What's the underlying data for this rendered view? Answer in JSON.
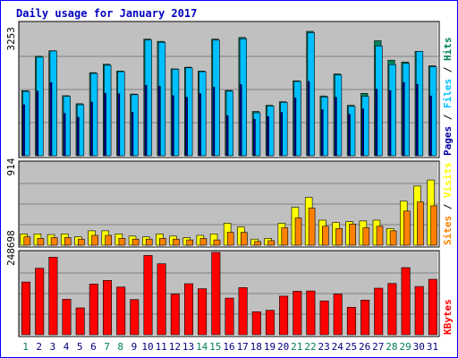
{
  "chart_data": {
    "type": "bar",
    "title": "Daily usage for January 2017",
    "categories": [
      "1",
      "2",
      "3",
      "4",
      "5",
      "6",
      "7",
      "8",
      "9",
      "10",
      "11",
      "12",
      "13",
      "14",
      "15",
      "16",
      "17",
      "18",
      "19",
      "20",
      "21",
      "22",
      "23",
      "24",
      "25",
      "26",
      "27",
      "28",
      "29",
      "30",
      "31"
    ],
    "weekend_days": [
      1,
      7,
      8,
      14,
      15,
      21,
      22,
      28,
      29
    ],
    "panels": [
      {
        "id": "pages-files-hits",
        "ytick_label": "3253",
        "ytick_value": 3253,
        "ylim": [
          0,
          4100
        ],
        "legend": [
          "Pages",
          "/",
          "Files",
          "/",
          "Hits"
        ],
        "series": [
          {
            "name": "Hits",
            "color": "#00805c",
            "values": [
              2010,
              3080,
              3250,
              1860,
              1610,
              2570,
              2830,
              2620,
              1910,
              3610,
              3540,
              2690,
              2740,
              2620,
              3610,
              2020,
              3660,
              1370,
              1560,
              1670,
              2320,
              3850,
              1850,
              2530,
              1560,
              1930,
              3560,
              2960,
              2900,
              3230,
              2780
            ]
          },
          {
            "name": "Files",
            "color": "#00bfff",
            "values": [
              1990,
              3050,
              3240,
              1840,
              1580,
              2550,
              2800,
              2600,
              1890,
              3580,
              3510,
              2680,
              2720,
              2600,
              3580,
              2000,
              3620,
              1330,
              1540,
              1650,
              2300,
              3810,
              1820,
              2500,
              1530,
              1840,
              3400,
              2820,
              2860,
              3230,
              2750
            ]
          },
          {
            "name": "Pages",
            "color": "#0000a0",
            "values": [
              1580,
              2000,
              2260,
              1310,
              1190,
              1660,
              1930,
              1920,
              1350,
              2180,
              2150,
              1860,
              1810,
              1920,
              2120,
              1240,
              2200,
              1130,
              1210,
              1340,
              1790,
              2300,
              1420,
              1810,
              1280,
              1450,
              2060,
              2020,
              2270,
              2210,
              1850
            ]
          }
        ]
      },
      {
        "id": "visits-sites",
        "ytick_label": "914",
        "ytick_value": 914,
        "ylim": [
          0,
          1085
        ],
        "legend": [
          "Sites",
          "/",
          "Visits"
        ],
        "series": [
          {
            "name": "Visits",
            "color": "#ffff00",
            "values": [
              150,
              150,
              140,
              150,
              110,
              190,
              190,
              150,
              120,
              110,
              150,
              120,
              100,
              130,
              150,
              290,
              240,
              80,
              90,
              290,
              500,
              630,
              330,
              300,
              310,
              320,
              330,
              220,
              580,
              780,
              860
            ]
          },
          {
            "name": "Sites",
            "color": "#ff8000",
            "values": [
              110,
              90,
              100,
              100,
              80,
              130,
              130,
              90,
              80,
              80,
              90,
              80,
              70,
              90,
              70,
              170,
              170,
              50,
              60,
              230,
              360,
              490,
              250,
              220,
              280,
              230,
              250,
              190,
              450,
              570,
              520
            ]
          }
        ]
      },
      {
        "id": "kbytes",
        "ytick_label": "248698",
        "ytick_value": 248698,
        "ylim": [
          0,
          297000
        ],
        "legend": [
          "KBytes"
        ],
        "series": [
          {
            "name": "KBytes",
            "color": "#ff0000",
            "values": [
              190000,
              240000,
              280000,
              128000,
              97000,
              183000,
              196000,
              172000,
              127000,
              286000,
              256000,
              147000,
              184000,
              166000,
              299000,
              132000,
              170000,
              83000,
              88000,
              139000,
              157000,
              158000,
              122000,
              147000,
              99000,
              125000,
              168000,
              185000,
              242000,
              174000,
              200000
            ]
          }
        ]
      }
    ],
    "grid": true
  },
  "colors": {
    "frame_blue": "#0000ff",
    "title_color": "#0000c0",
    "plot_bg": "#c0c0c0",
    "day_label": "#000080",
    "weekend_label": "#00805c",
    "gridline": "#808080"
  }
}
